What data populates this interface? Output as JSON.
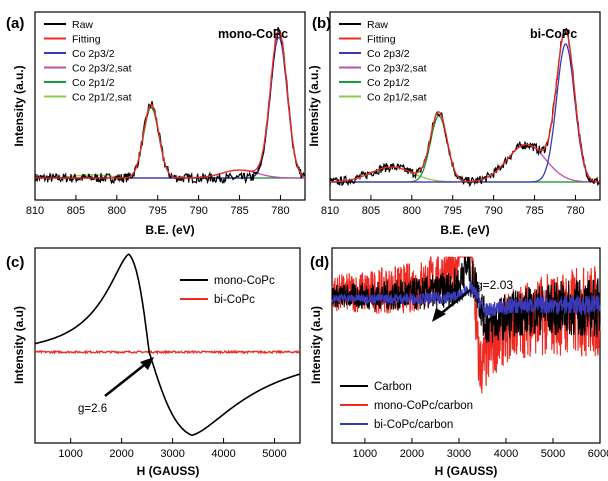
{
  "colors": {
    "black": "#000000",
    "red": "#ee2b23",
    "blue": "#3a3ab8",
    "magenta": "#b94fb3",
    "green": "#1a9a3c",
    "lightgreen": "#8ccc4a"
  },
  "chart_data": [
    {
      "panel": "(a)",
      "type": "line",
      "title": "mono-CoPc",
      "xlabel": "B.E. (eV)",
      "ylabel": "Intensity (a.u.)",
      "xlim": [
        810,
        777
      ],
      "x_reversed": true,
      "x_ticks": [
        810,
        805,
        800,
        795,
        790,
        785,
        780
      ],
      "legend_position": "top-left",
      "series": [
        {
          "name": "Raw",
          "color": "#000000",
          "peaks": [
            {
              "center": 795.8,
              "height": 0.46,
              "fwhm": 2.2
            },
            {
              "center": 780.2,
              "height": 0.92,
              "fwhm": 2.4
            }
          ],
          "baseline": 0.0,
          "noise": 0.03
        },
        {
          "name": "Fitting",
          "color": "#ee2b23",
          "peaks": [
            {
              "center": 795.8,
              "height": 0.46,
              "fwhm": 2.2
            },
            {
              "center": 780.2,
              "height": 0.92,
              "fwhm": 2.4
            },
            {
              "center": 785.0,
              "height": 0.05,
              "fwhm": 5.0
            }
          ],
          "baseline": 0.0
        },
        {
          "name": "Co 2p3/2",
          "color": "#3a3ab8",
          "peaks": [
            {
              "center": 780.2,
              "height": 0.88,
              "fwhm": 2.4
            }
          ],
          "baseline": 0.0
        },
        {
          "name": "Co 2p3/2,sat",
          "color": "#b94fb3",
          "peaks": [
            {
              "center": 785.0,
              "height": 0.05,
              "fwhm": 5.0
            }
          ],
          "baseline": 0.0
        },
        {
          "name": "Co 2p1/2",
          "color": "#1a9a3c",
          "peaks": [
            {
              "center": 795.8,
              "height": 0.44,
              "fwhm": 2.2
            }
          ],
          "baseline": 0.0
        },
        {
          "name": "Co 2p1/2,sat",
          "color": "#8ccc4a",
          "peaks": [
            {
              "center": 803.0,
              "height": 0.02,
              "fwhm": 5.0
            }
          ],
          "baseline": 0.0
        }
      ]
    },
    {
      "panel": "(b)",
      "type": "line",
      "title": "bi-CoPc",
      "xlabel": "B.E. (eV)",
      "ylabel": "Intensity (a.u.)",
      "xlim": [
        810,
        777
      ],
      "x_reversed": true,
      "x_ticks": [
        810,
        805,
        800,
        795,
        790,
        785,
        780
      ],
      "legend_position": "top-left",
      "series": [
        {
          "name": "Raw",
          "color": "#000000",
          "peaks": [
            {
              "center": 796.7,
              "height": 0.46,
              "fwhm": 2.4
            },
            {
              "center": 781.2,
              "height": 0.98,
              "fwhm": 2.6
            },
            {
              "center": 786.0,
              "height": 0.25,
              "fwhm": 5.5
            },
            {
              "center": 802.5,
              "height": 0.1,
              "fwhm": 6.0
            }
          ],
          "baseline": 0.0,
          "noise": 0.03
        },
        {
          "name": "Fitting",
          "color": "#ee2b23",
          "peaks": [
            {
              "center": 796.7,
              "height": 0.46,
              "fwhm": 2.4
            },
            {
              "center": 781.2,
              "height": 0.98,
              "fwhm": 2.6
            },
            {
              "center": 786.0,
              "height": 0.25,
              "fwhm": 5.5
            },
            {
              "center": 802.5,
              "height": 0.1,
              "fwhm": 6.0
            }
          ],
          "baseline": 0.0
        },
        {
          "name": "Co 2p3/2",
          "color": "#3a3ab8",
          "peaks": [
            {
              "center": 781.2,
              "height": 0.92,
              "fwhm": 2.6
            }
          ],
          "baseline": 0.0
        },
        {
          "name": "Co 2p3/2,sat",
          "color": "#b94fb3",
          "peaks": [
            {
              "center": 786.0,
              "height": 0.25,
              "fwhm": 5.5
            }
          ],
          "baseline": 0.0
        },
        {
          "name": "Co 2p1/2",
          "color": "#1a9a3c",
          "peaks": [
            {
              "center": 796.7,
              "height": 0.44,
              "fwhm": 2.4
            }
          ],
          "baseline": 0.0
        },
        {
          "name": "Co 2p1/2,sat",
          "color": "#8ccc4a",
          "peaks": [
            {
              "center": 802.5,
              "height": 0.1,
              "fwhm": 6.0
            }
          ],
          "baseline": 0.0
        }
      ]
    },
    {
      "panel": "(c)",
      "type": "line",
      "xlabel": "H (GAUSS)",
      "ylabel": "Intensity (a.u)",
      "xlim": [
        300,
        5500
      ],
      "x_ticks": [
        1000,
        2000,
        3000,
        4000,
        5000
      ],
      "legend_position": "top-right",
      "annotation": {
        "text": "g=2.6",
        "x": 2500
      },
      "series": [
        {
          "name": "mono-CoPc",
          "color": "#000000",
          "center": 2540,
          "max_at": 2140,
          "max_value": 1.0,
          "min_at": 3380,
          "min_value": -0.85
        },
        {
          "name": "bi-CoPc",
          "color": "#ee2b23",
          "center": 2540,
          "max_value": 0.02,
          "min_value": -0.02,
          "noise": 0.01
        }
      ]
    },
    {
      "panel": "(d)",
      "type": "line",
      "xlabel": "H (GAUSS)",
      "ylabel": "Intensity (a.u)",
      "xlim": [
        300,
        6000
      ],
      "x_ticks": [
        1000,
        2000,
        3000,
        4000,
        5000,
        6000
      ],
      "legend_position": "bottom-left",
      "annotation": {
        "text": "g=2.03",
        "x": 3400
      },
      "series": [
        {
          "name": "Carbon",
          "color": "#000000",
          "max_at": 3250,
          "max_value": 0.25,
          "min_at": 3650,
          "min_value": -0.25,
          "noise_band": 0.35
        },
        {
          "name": "mono-CoPc/carbon",
          "color": "#ee2b23",
          "max_at": 3200,
          "max_value": 0.45,
          "min_at": 3480,
          "min_value": -1.0,
          "noise_band": 0.55
        },
        {
          "name": "bi-CoPc/carbon",
          "color": "#3a3ab8",
          "max_at": 3300,
          "max_value": 0.08,
          "min_at": 3600,
          "min_value": -0.12,
          "noise_band": 0.12
        }
      ]
    }
  ]
}
